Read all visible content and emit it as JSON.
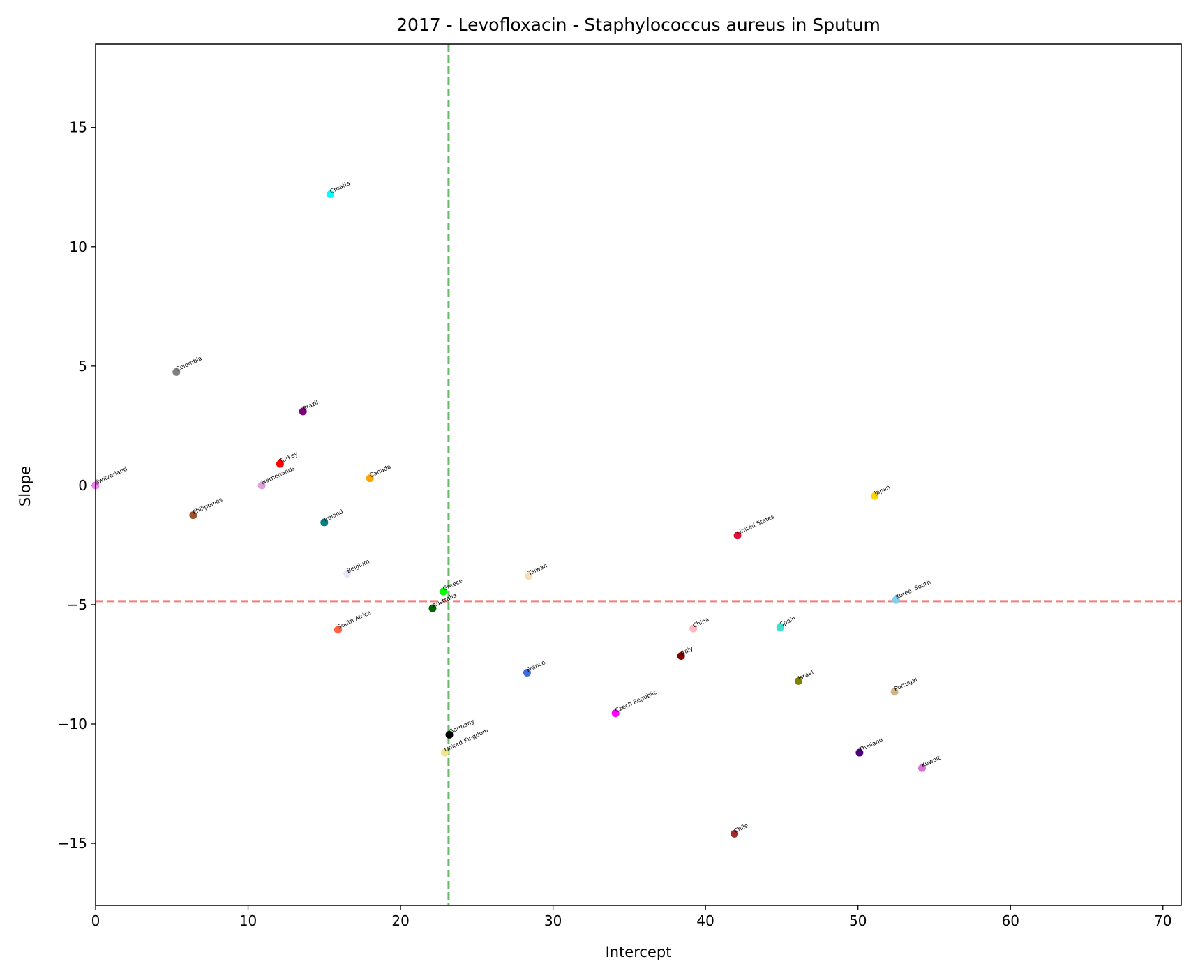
{
  "chart_data": {
    "type": "scatter",
    "title": "2017 - Levofloxacin - Staphylococcus aureus in Sputum",
    "xlabel": "Intercept",
    "ylabel": "Slope",
    "xlim": [
      0,
      71.2
    ],
    "ylim": [
      -17.6,
      18.5
    ],
    "xticks": [
      0,
      10,
      20,
      30,
      40,
      50,
      60,
      70
    ],
    "yticks": [
      -15,
      -10,
      -5,
      0,
      5,
      10,
      15
    ],
    "grid": false,
    "legend": "none",
    "reference_lines": {
      "vertical": {
        "x": 23.15,
        "color": "#6ab86a",
        "style": "dashed"
      },
      "horizontal": {
        "y": -4.85,
        "color": "#f47c7c",
        "style": "dashed"
      }
    },
    "points": [
      {
        "label": "Croatia",
        "x": 15.4,
        "y": 12.2,
        "color": "#00ffff"
      },
      {
        "label": "Colombia",
        "x": 5.3,
        "y": 4.75,
        "color": "#808080"
      },
      {
        "label": "Brazil",
        "x": 13.6,
        "y": 3.1,
        "color": "#800080"
      },
      {
        "label": "Turkey",
        "x": 12.1,
        "y": 0.9,
        "color": "#ff0000"
      },
      {
        "label": "Netherlands",
        "x": 10.9,
        "y": 0.0,
        "color": "#dda0dd"
      },
      {
        "label": "Switzerland",
        "x": 0.0,
        "y": 0.0,
        "color": "#ee82ee"
      },
      {
        "label": "Canada",
        "x": 18.0,
        "y": 0.3,
        "color": "#ffa500"
      },
      {
        "label": "Philippines",
        "x": 6.4,
        "y": -1.25,
        "color": "#a0522d"
      },
      {
        "label": "Ireland",
        "x": 15.0,
        "y": -1.55,
        "color": "#008080"
      },
      {
        "label": "Belgium",
        "x": 16.5,
        "y": -3.7,
        "color": "#e6e6fa"
      },
      {
        "label": "Taiwan",
        "x": 28.4,
        "y": -3.8,
        "color": "#f5deb3"
      },
      {
        "label": "Greece",
        "x": 22.8,
        "y": -4.45,
        "color": "#00ff00"
      },
      {
        "label": "Australia",
        "x": 22.1,
        "y": -5.15,
        "color": "#006400"
      },
      {
        "label": "South Africa",
        "x": 15.9,
        "y": -6.05,
        "color": "#ff6347"
      },
      {
        "label": "United States",
        "x": 42.1,
        "y": -2.1,
        "color": "#dc143c"
      },
      {
        "label": "Japan",
        "x": 51.1,
        "y": -0.45,
        "color": "#ffd700"
      },
      {
        "label": "Korea, South",
        "x": 52.5,
        "y": -4.8,
        "color": "#87ceeb"
      },
      {
        "label": "China",
        "x": 39.2,
        "y": -6.0,
        "color": "#ffb6c1"
      },
      {
        "label": "Spain",
        "x": 44.9,
        "y": -5.95,
        "color": "#40e0d0"
      },
      {
        "label": "Italy",
        "x": 38.4,
        "y": -7.15,
        "color": "#800000"
      },
      {
        "label": "France",
        "x": 28.3,
        "y": -7.85,
        "color": "#4169e1"
      },
      {
        "label": "Israel",
        "x": 46.1,
        "y": -8.2,
        "color": "#808000"
      },
      {
        "label": "Portugal",
        "x": 52.4,
        "y": -8.65,
        "color": "#d2b48c"
      },
      {
        "label": "Czech Republic",
        "x": 34.1,
        "y": -9.55,
        "color": "#ff00ff"
      },
      {
        "label": "Germany",
        "x": 23.2,
        "y": -10.45,
        "color": "#000000"
      },
      {
        "label": "United Kingdom",
        "x": 22.9,
        "y": -11.2,
        "color": "#f0e68c"
      },
      {
        "label": "Thailand",
        "x": 50.1,
        "y": -11.2,
        "color": "#4b0082"
      },
      {
        "label": "Kuwait",
        "x": 54.2,
        "y": -11.85,
        "color": "#da70d6"
      },
      {
        "label": "Chile",
        "x": 41.9,
        "y": -14.6,
        "color": "#a52a2a"
      }
    ]
  }
}
